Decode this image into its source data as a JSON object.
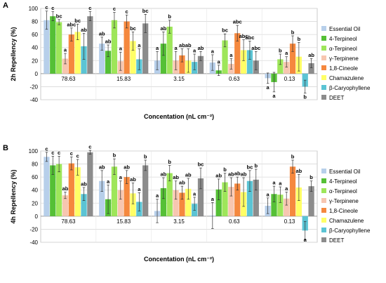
{
  "colors": {
    "Essential Oil": "#b7cfea",
    "4-Terpineol": "#55c036",
    "α-Terpineol": "#9ee65a",
    "γ-Terpinene": "#f7c6b0",
    "1,8-Cineole": "#f5883e",
    "Chamazulene": "#ffff66",
    "β-Caryophyllene": "#5bc4d4",
    "DEET": "#8c8c8c"
  },
  "chart_data": [
    {
      "panel": "A",
      "type": "bar",
      "ylabel": "2h Repellency (%)",
      "xlabel": "Concentation (nL cm⁻²)",
      "ylim": [
        -40,
        100
      ],
      "yticks": [
        -40,
        -20,
        0,
        20,
        40,
        60,
        80,
        100
      ],
      "grid": true,
      "legend_position": "right",
      "categories": [
        "78.63",
        "15.83",
        "3.15",
        "0.63",
        "0.13"
      ],
      "series": [
        {
          "name": "Essential Oil",
          "values": [
            82,
            46,
            20,
            17,
            -7
          ],
          "errors": [
            14,
            10,
            14,
            12,
            8
          ],
          "letters": [
            "c",
            "ab",
            "a",
            "a",
            "a"
          ]
        },
        {
          "name": "4-Terpineol",
          "values": [
            88,
            35,
            46,
            5,
            -13
          ],
          "errors": [
            7,
            9,
            18,
            8,
            15
          ],
          "letters": [
            "c",
            "ab",
            "ab",
            "a",
            "a"
          ]
        },
        {
          "name": "α-Terpineol",
          "values": [
            79,
            82,
            72,
            51,
            22
          ],
          "errors": [
            4,
            12,
            10,
            10,
            8
          ],
          "letters": [
            "bc",
            "c",
            "b",
            "bc",
            "b"
          ]
        },
        {
          "name": "γ-Terpinene",
          "values": [
            23,
            19,
            20,
            15,
            18
          ],
          "errors": [
            8,
            14,
            14,
            8,
            8
          ],
          "letters": [
            "a",
            "a",
            "a",
            "a",
            "a"
          ]
        },
        {
          "name": "1,8-Cineole",
          "values": [
            60,
            80,
            28,
            62,
            46
          ],
          "errors": [
            10,
            10,
            10,
            12,
            12
          ],
          "letters": [
            "abc",
            "c",
            "ab",
            "abc",
            "b"
          ]
        },
        {
          "name": "Chamazulene",
          "values": [
            64,
            50,
            20,
            36,
            26
          ],
          "errors": [
            12,
            14,
            18,
            16,
            22
          ],
          "letters": [
            "bc",
            "bc",
            "ab",
            "abc",
            "b"
          ]
        },
        {
          "name": "β-Caryophyllene",
          "values": [
            42,
            22,
            18,
            36,
            -20
          ],
          "errors": [
            20,
            16,
            12,
            14,
            10
          ],
          "letters": [
            "ab",
            "a",
            "a",
            "abc",
            "b"
          ]
        },
        {
          "name": "DEET",
          "values": [
            88,
            77,
            27,
            20,
            16
          ],
          "errors": [
            7,
            14,
            7,
            14,
            7
          ],
          "letters": [
            "c",
            "bc",
            "ab",
            "abc",
            "ab"
          ]
        }
      ]
    },
    {
      "panel": "B",
      "type": "bar",
      "ylabel": "4h Repellency (%)",
      "xlabel": "Concentation (nL cm⁻²)",
      "ylim": [
        -40,
        100
      ],
      "yticks": [
        -40,
        -20,
        0,
        20,
        40,
        60,
        80,
        100
      ],
      "grid": true,
      "legend_position": "right",
      "categories": [
        "78.63",
        "15.83",
        "3.15",
        "0.63",
        "0.13"
      ],
      "series": [
        {
          "name": "Essential Oil",
          "values": [
            91,
            54,
            8,
            1,
            16
          ],
          "errors": [
            7,
            16,
            18,
            20,
            12
          ],
          "letters": [
            "c",
            "ab",
            "a",
            "a",
            "a"
          ]
        },
        {
          "name": "4-Terpineol",
          "values": [
            78,
            26,
            43,
            41,
            34
          ],
          "errors": [
            14,
            22,
            16,
            16,
            12
          ],
          "letters": [
            "c",
            "a",
            "ab",
            "ab",
            "a"
          ]
        },
        {
          "name": "α-Terpineol",
          "values": [
            80,
            76,
            66,
            52,
            33
          ],
          "errors": [
            12,
            12,
            12,
            14,
            12
          ],
          "letters": [
            "c",
            "b",
            "b",
            "b",
            "a"
          ]
        },
        {
          "name": "γ-Terpinene",
          "values": [
            32,
            40,
            40,
            45,
            27
          ],
          "errors": [
            5,
            14,
            14,
            14,
            10
          ],
          "letters": [
            "ab",
            "a",
            "ab",
            "ab",
            "a"
          ]
        },
        {
          "name": "1,8-Cineole",
          "values": [
            81,
            60,
            36,
            50,
            76
          ],
          "errors": [
            10,
            10,
            10,
            10,
            10
          ],
          "letters": [
            "c",
            "ab",
            "ab",
            "ab",
            "b"
          ]
        },
        {
          "name": "Chamazulene",
          "values": [
            75,
            35,
            42,
            37,
            44
          ],
          "errors": [
            12,
            16,
            16,
            22,
            20
          ],
          "letters": [
            "c",
            "ab",
            "ab",
            "ab",
            "ab"
          ]
        },
        {
          "name": "β-Caryophyllene",
          "values": [
            34,
            22,
            19,
            54,
            -22
          ],
          "errors": [
            10,
            14,
            10,
            16,
            14
          ],
          "letters": [
            "ab",
            "a",
            "a",
            "bc",
            "a"
          ]
        },
        {
          "name": "DEET",
          "values": [
            98,
            78,
            58,
            56,
            46
          ],
          "errors": [
            3,
            8,
            16,
            16,
            8
          ],
          "letters": [
            "c",
            "b",
            "bc",
            "b",
            "b"
          ]
        }
      ]
    }
  ]
}
